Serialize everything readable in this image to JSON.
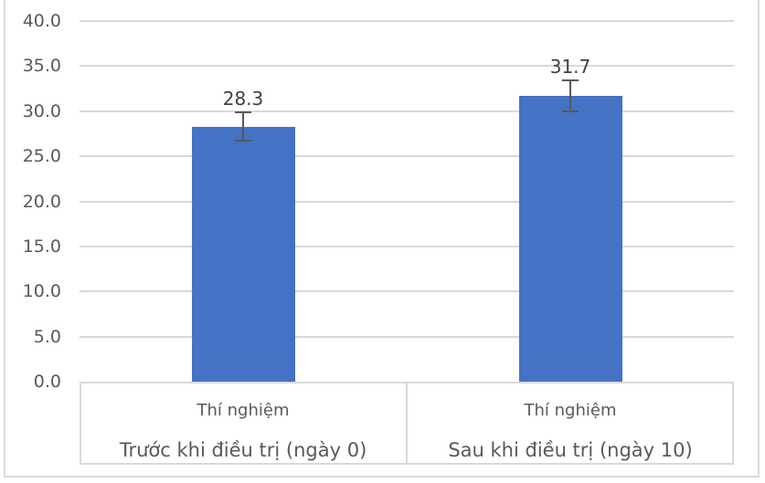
{
  "chart_data": {
    "type": "bar",
    "title": "",
    "xlabel": "",
    "ylabel": "",
    "series_name": "Thí nghiệm",
    "categories": [
      "Thí nghiệm",
      "Thí nghiệm"
    ],
    "group_labels": [
      "Trước khi điều trị (ngày 0)",
      "Sau khi điều trị (ngày 10)"
    ],
    "values": [
      28.3,
      31.7
    ],
    "error_bars": [
      1.6,
      1.7
    ],
    "data_labels": [
      "28.3",
      "31.7"
    ],
    "ylim": [
      0,
      40
    ],
    "ytick_step": 5,
    "ytick_labels": [
      "40.0",
      "35.0",
      "30.0",
      "25.0",
      "20.0",
      "15.0",
      "10.0",
      "5.0",
      "0.0"
    ],
    "grid": true,
    "legend": false,
    "colors": {
      "bar": "#4472C4",
      "gridline": "#D9D9D9",
      "axis_text": "#595959",
      "data_label_text": "#404040",
      "error_bar": "#595959",
      "axis_border": "#D9D9D9",
      "chart_border": "#D9D9D9",
      "background": "#FFFFFF"
    }
  }
}
